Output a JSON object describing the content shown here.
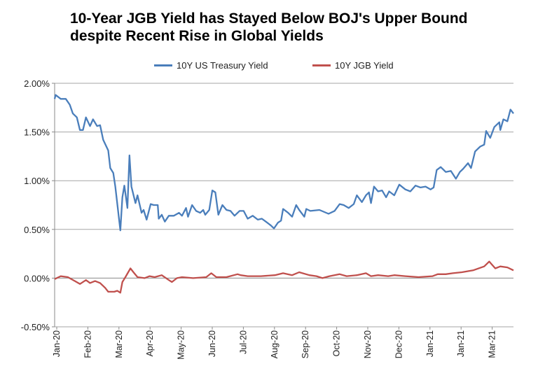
{
  "chart_data": {
    "type": "line",
    "title": "10-Year JGB Yield has Stayed Below BOJ's Upper Bound despite Recent Rise in Global Yields",
    "xlabel": "",
    "ylabel": "",
    "ylim": [
      -0.5,
      2.0
    ],
    "xlim": [
      "2020-01-02",
      "2021-03-31"
    ],
    "yticks": [
      "2.00%",
      "1.50%",
      "1.00%",
      "0.50%",
      "0.00%",
      "-0.50%"
    ],
    "ytick_values": [
      2.0,
      1.5,
      1.0,
      0.5,
      0.0,
      -0.5
    ],
    "xticks": [
      "Jan-20",
      "Feb-20",
      "Mar-20",
      "Apr-20",
      "May-20",
      "Jun-20",
      "Jul-20",
      "Aug-20",
      "Sep-20",
      "Oct-20",
      "Nov-20",
      "Dec-20",
      "Jan-21",
      "Jan-21",
      "Mar-21"
    ],
    "grid": "horizontal",
    "legend": "top",
    "series": [
      {
        "name": "10Y US Treasury Yield",
        "color": "#4a7ebb",
        "x": [
          "2020-01-02",
          "2020-01-03",
          "2020-01-08",
          "2020-01-13",
          "2020-01-17",
          "2020-01-20",
          "2020-01-24",
          "2020-01-27",
          "2020-01-30",
          "2020-02-02",
          "2020-02-06",
          "2020-02-09",
          "2020-02-13",
          "2020-02-16",
          "2020-02-19",
          "2020-02-24",
          "2020-02-26",
          "2020-02-29",
          "2020-03-02",
          "2020-03-07",
          "2020-03-09",
          "2020-03-11",
          "2020-03-14",
          "2020-03-16",
          "2020-03-18",
          "2020-03-22",
          "2020-03-24",
          "2020-03-28",
          "2020-03-30",
          "2020-04-02",
          "2020-04-06",
          "2020-04-09",
          "2020-04-13",
          "2020-04-14",
          "2020-04-17",
          "2020-04-20",
          "2020-04-24",
          "2020-04-29",
          "2020-05-04",
          "2020-05-07",
          "2020-05-11",
          "2020-05-13",
          "2020-05-17",
          "2020-05-21",
          "2020-05-25",
          "2020-05-28",
          "2020-05-30",
          "2020-06-03",
          "2020-06-06",
          "2020-06-09",
          "2020-06-12",
          "2020-06-16",
          "2020-06-20",
          "2020-06-24",
          "2020-06-28",
          "2020-07-03",
          "2020-07-07",
          "2020-07-11",
          "2020-07-16",
          "2020-07-21",
          "2020-07-25",
          "2020-07-29",
          "2020-08-03",
          "2020-08-06",
          "2020-08-10",
          "2020-08-13",
          "2020-08-15",
          "2020-08-20",
          "2020-08-24",
          "2020-08-28",
          "2020-08-31",
          "2020-09-05",
          "2020-09-07",
          "2020-09-11",
          "2020-09-20",
          "2020-09-29",
          "2020-10-05",
          "2020-10-10",
          "2020-10-14",
          "2020-10-19",
          "2020-10-24",
          "2020-10-27",
          "2020-11-01",
          "2020-11-05",
          "2020-11-08",
          "2020-11-10",
          "2020-11-13",
          "2020-11-17",
          "2020-11-21",
          "2020-11-25",
          "2020-11-28",
          "2020-12-03",
          "2020-12-08",
          "2020-12-14",
          "2020-12-19",
          "2020-12-24",
          "2020-12-29",
          "2021-01-03",
          "2021-01-08",
          "2021-01-11",
          "2021-01-14",
          "2021-01-18",
          "2021-01-23",
          "2021-01-28",
          "2021-02-02",
          "2021-02-06",
          "2021-02-09",
          "2021-02-14",
          "2021-02-17",
          "2021-02-21",
          "2021-02-26",
          "2021-03-02",
          "2021-03-04",
          "2021-03-08",
          "2021-03-12",
          "2021-03-17",
          "2021-03-18",
          "2021-03-21",
          "2021-03-25",
          "2021-03-28",
          "2021-03-31"
        ],
        "values": [
          1.84,
          1.88,
          1.84,
          1.84,
          1.78,
          1.69,
          1.65,
          1.52,
          1.52,
          1.65,
          1.56,
          1.63,
          1.56,
          1.57,
          1.42,
          1.31,
          1.13,
          1.08,
          0.94,
          0.49,
          0.83,
          0.95,
          0.72,
          1.26,
          0.94,
          0.77,
          0.85,
          0.67,
          0.7,
          0.6,
          0.76,
          0.75,
          0.75,
          0.61,
          0.65,
          0.58,
          0.64,
          0.64,
          0.67,
          0.64,
          0.72,
          0.63,
          0.75,
          0.69,
          0.67,
          0.7,
          0.65,
          0.7,
          0.9,
          0.88,
          0.65,
          0.75,
          0.7,
          0.69,
          0.64,
          0.69,
          0.69,
          0.61,
          0.64,
          0.6,
          0.61,
          0.58,
          0.54,
          0.51,
          0.57,
          0.59,
          0.71,
          0.67,
          0.63,
          0.75,
          0.7,
          0.63,
          0.71,
          0.69,
          0.7,
          0.66,
          0.69,
          0.76,
          0.75,
          0.72,
          0.76,
          0.85,
          0.78,
          0.85,
          0.88,
          0.77,
          0.94,
          0.89,
          0.9,
          0.83,
          0.89,
          0.85,
          0.96,
          0.91,
          0.89,
          0.95,
          0.93,
          0.94,
          0.91,
          0.93,
          1.11,
          1.14,
          1.09,
          1.1,
          1.02,
          1.09,
          1.12,
          1.18,
          1.13,
          1.3,
          1.35,
          1.37,
          1.51,
          1.44,
          1.55,
          1.6,
          1.52,
          1.63,
          1.61,
          1.73,
          1.69
        ]
      },
      {
        "name": "10Y JGB Yield",
        "color": "#c0504d",
        "x": [
          "2020-01-02",
          "2020-01-08",
          "2020-01-15",
          "2020-01-22",
          "2020-01-27",
          "2020-02-02",
          "2020-02-06",
          "2020-02-11",
          "2020-02-16",
          "2020-02-21",
          "2020-02-24",
          "2020-03-01",
          "2020-03-04",
          "2020-03-07",
          "2020-03-09",
          "2020-03-12",
          "2020-03-17",
          "2020-03-20",
          "2020-03-24",
          "2020-03-31",
          "2020-04-05",
          "2020-04-10",
          "2020-04-17",
          "2020-04-24",
          "2020-04-27",
          "2020-05-02",
          "2020-05-07",
          "2020-05-18",
          "2020-05-31",
          "2020-06-05",
          "2020-06-10",
          "2020-06-20",
          "2020-07-01",
          "2020-07-04",
          "2020-07-11",
          "2020-07-24",
          "2020-08-07",
          "2020-08-15",
          "2020-08-24",
          "2020-08-31",
          "2020-09-10",
          "2020-09-17",
          "2020-09-23",
          "2020-09-30",
          "2020-10-10",
          "2020-10-17",
          "2020-10-27",
          "2020-11-05",
          "2020-11-10",
          "2020-11-17",
          "2020-11-27",
          "2020-12-03",
          "2020-12-14",
          "2020-12-27",
          "2021-01-10",
          "2021-01-15",
          "2021-01-23",
          "2021-01-30",
          "2021-02-08",
          "2021-02-19",
          "2021-03-02",
          "2021-03-07",
          "2021-03-13",
          "2021-03-18",
          "2021-03-25",
          "2021-03-31"
        ],
        "values": [
          -0.01,
          0.02,
          0.01,
          -0.03,
          -0.06,
          -0.02,
          -0.05,
          -0.03,
          -0.05,
          -0.1,
          -0.14,
          -0.14,
          -0.13,
          -0.15,
          -0.04,
          0.01,
          0.1,
          0.06,
          0.01,
          0.0,
          0.02,
          0.01,
          0.03,
          -0.02,
          -0.04,
          0.0,
          0.01,
          0.0,
          0.01,
          0.05,
          0.01,
          0.01,
          0.04,
          0.03,
          0.02,
          0.02,
          0.03,
          0.05,
          0.03,
          0.06,
          0.03,
          0.02,
          0.0,
          0.02,
          0.04,
          0.02,
          0.03,
          0.05,
          0.02,
          0.03,
          0.02,
          0.03,
          0.02,
          0.01,
          0.02,
          0.04,
          0.04,
          0.05,
          0.06,
          0.08,
          0.12,
          0.17,
          0.1,
          0.12,
          0.11,
          0.08
        ]
      }
    ]
  }
}
